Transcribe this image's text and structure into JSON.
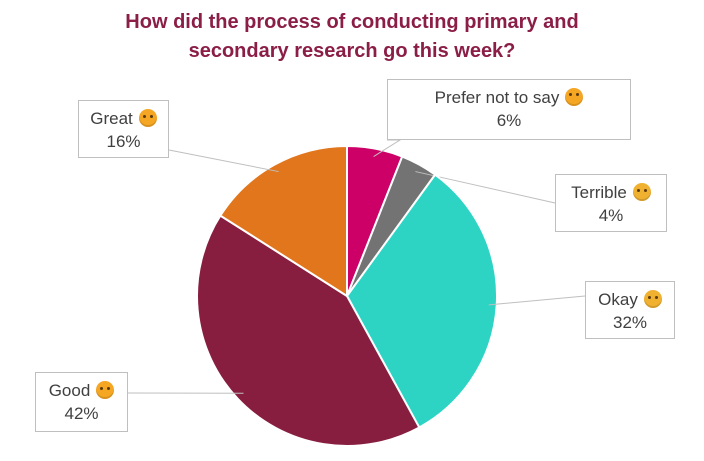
{
  "chart_data": {
    "type": "pie",
    "title_lines": [
      "How did the process of conducting primary and",
      "secondary research go this week?"
    ],
    "slices": [
      {
        "label": "Prefer not to say",
        "value": 6,
        "value_text": "6%",
        "color": "#cc0066",
        "emoji": "grimacing-face-icon"
      },
      {
        "label": "Terrible",
        "value": 4,
        "value_text": "4%",
        "color": "#737373",
        "emoji": "pensive-face-icon"
      },
      {
        "label": "Okay",
        "value": 32,
        "value_text": "32%",
        "color": "#2dd4c4",
        "emoji": "worried-face-icon"
      },
      {
        "label": "Good",
        "value": 42,
        "value_text": "42%",
        "color": "#871e40",
        "emoji": "smiling-face-icon"
      },
      {
        "label": "Great",
        "value": 16,
        "value_text": "16%",
        "color": "#e2761d",
        "emoji": "grinning-face-icon"
      }
    ],
    "legend": "none",
    "data_labels": "callouts"
  }
}
